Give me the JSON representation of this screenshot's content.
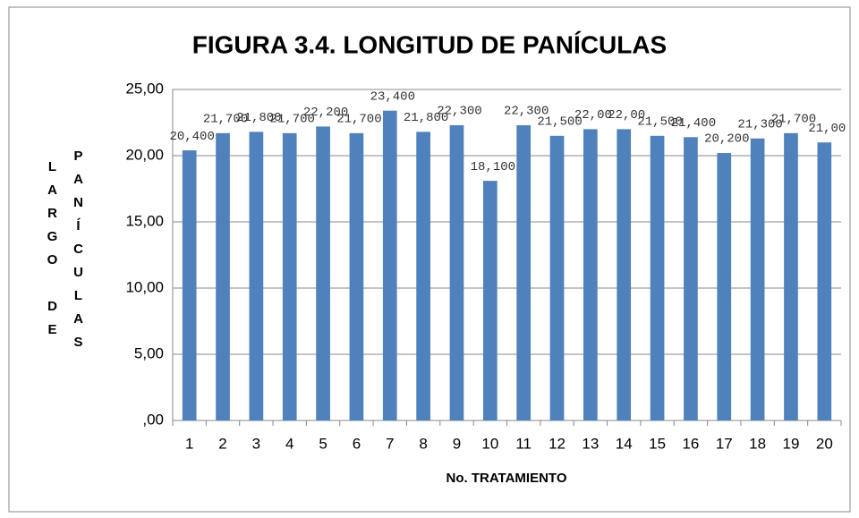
{
  "chart_data": {
    "type": "bar",
    "title": "FIGURA 3.4. LONGITUD DE PANÍCULAS",
    "x_label": "No. TRATAMIENTO",
    "y_label": [
      "LARGO DE",
      "PANÍCULAS"
    ],
    "categories": [
      "1",
      "2",
      "3",
      "4",
      "5",
      "6",
      "7",
      "8",
      "9",
      "10",
      "11",
      "12",
      "13",
      "14",
      "15",
      "16",
      "17",
      "18",
      "19",
      "20"
    ],
    "values": [
      20.4,
      21.7,
      21.8,
      21.7,
      22.2,
      21.7,
      23.4,
      21.8,
      22.3,
      18.1,
      22.3,
      21.5,
      22.0,
      22.0,
      21.5,
      21.4,
      20.2,
      21.3,
      21.7,
      21.0
    ],
    "value_labels": [
      "20,400",
      "21,700",
      "21,800",
      "21,700",
      "22,200",
      "21,700",
      "23,400",
      "21,800",
      "22,300",
      "18,100",
      "22,300",
      "21,500",
      "22,00",
      "22,00",
      "21,500",
      "21,400",
      "20,200",
      "21,300",
      "21,700",
      "21,00"
    ],
    "color": "#4f81bd",
    "ylim": [
      0,
      25
    ],
    "yticks": [
      {
        "value": 0,
        "label": ",00"
      },
      {
        "value": 5,
        "label": "5,00"
      },
      {
        "value": 10,
        "label": "10,00"
      },
      {
        "value": 15,
        "label": "15,00"
      },
      {
        "value": 20,
        "label": "20,00"
      },
      {
        "value": 25,
        "label": "25,00"
      }
    ],
    "grid": true
  }
}
